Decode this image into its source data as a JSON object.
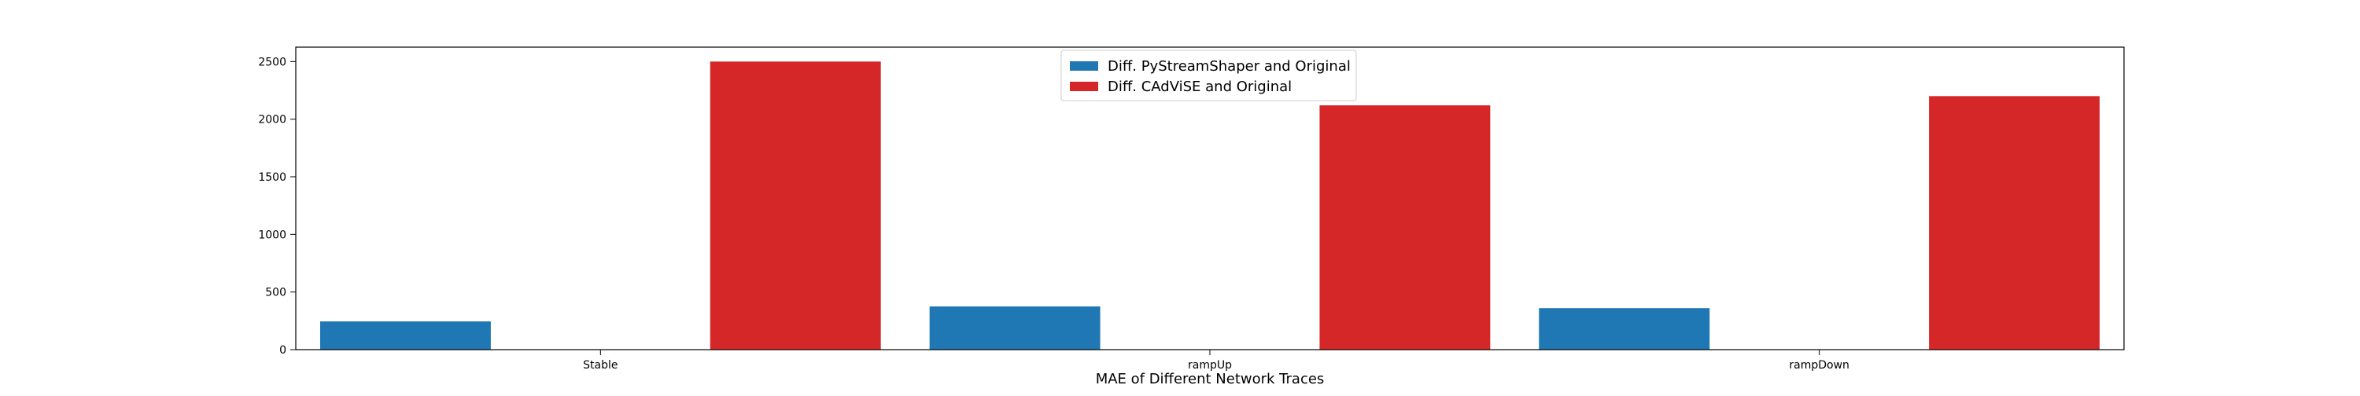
{
  "chart_data": {
    "type": "bar",
    "title": "",
    "xlabel": "MAE of Different Network Traces",
    "ylabel": "",
    "categories": [
      "Stable",
      "rampUp",
      "rampDown"
    ],
    "series": [
      {
        "name": "Diff. PyStreamShaper and Original",
        "color": "#1f77b4",
        "values": [
          245,
          375,
          360
        ]
      },
      {
        "name": "Diff. CAdViSE and Original",
        "color": "#d62728",
        "values": [
          2500,
          2120,
          2200
        ]
      }
    ],
    "ylim": [
      0,
      2625
    ],
    "yticks": [
      0,
      500,
      1000,
      1500,
      2000,
      2500
    ],
    "grid": false,
    "legend_position": "top-center"
  }
}
